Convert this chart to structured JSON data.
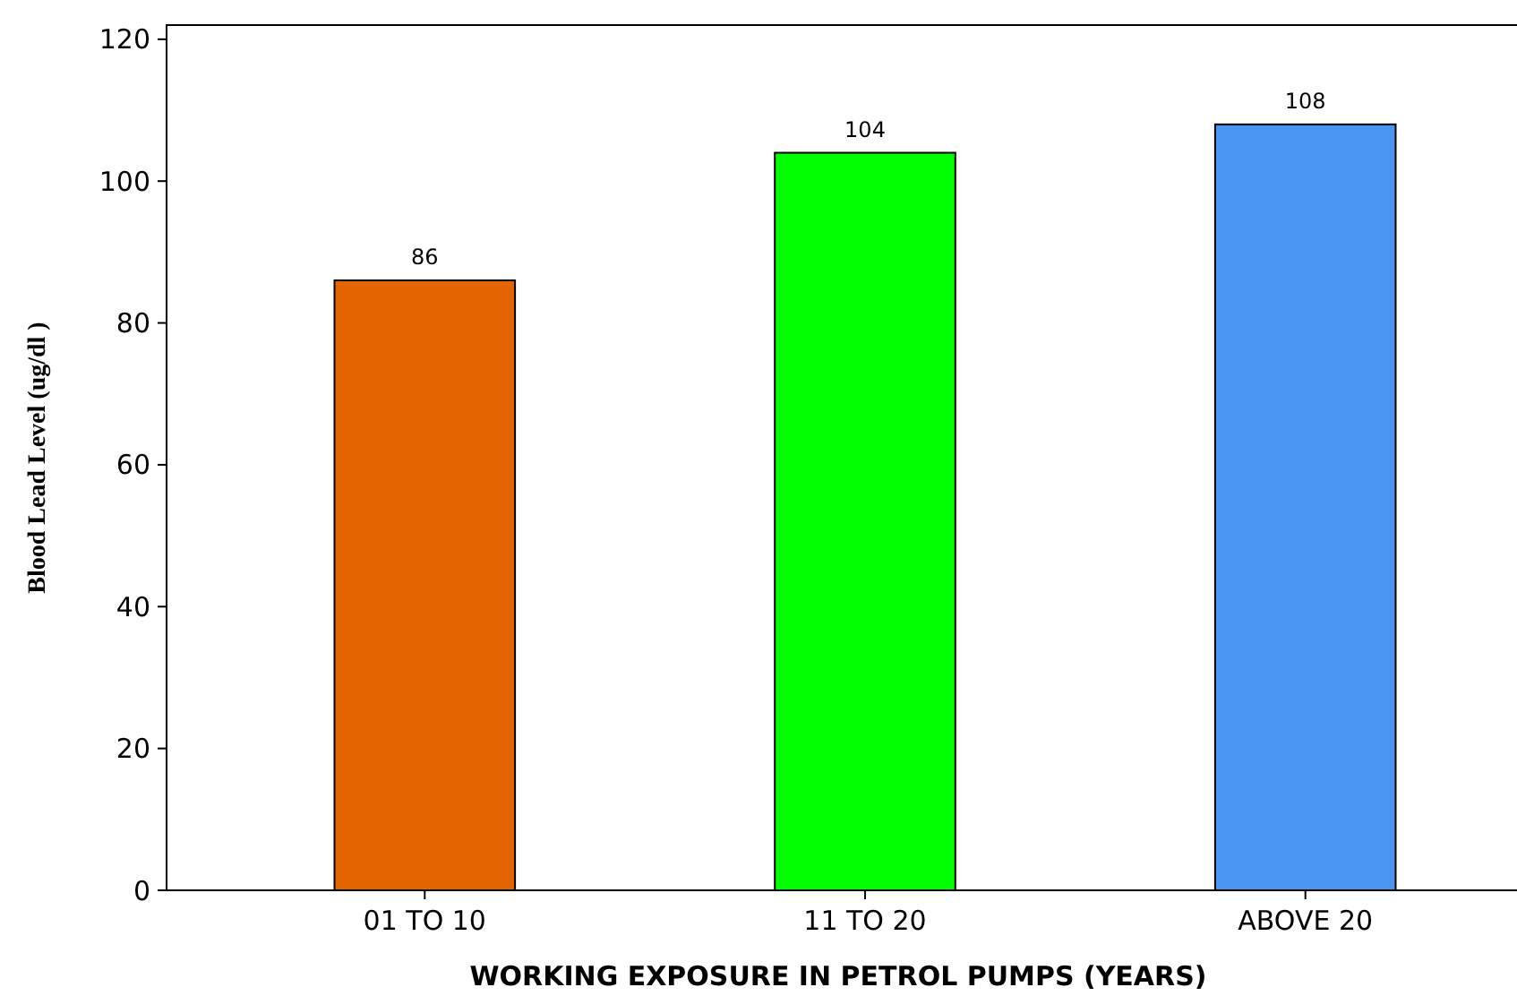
{
  "chart_data": {
    "type": "bar",
    "xlabel": "WORKING EXPOSURE IN PETROL PUMPS (YEARS)",
    "ylabel": "Blood Lead Level (ug/dl )",
    "categories": [
      "01 TO 10",
      "11 TO 20",
      "ABOVE 20"
    ],
    "values": [
      86,
      104,
      108
    ],
    "colors": [
      "#e36500",
      "#00ff00",
      "#4a94f2"
    ],
    "ylim": [
      0,
      122
    ],
    "yticks": [
      0,
      20,
      40,
      60,
      80,
      100,
      120
    ],
    "data_labels": true,
    "grid": false
  }
}
